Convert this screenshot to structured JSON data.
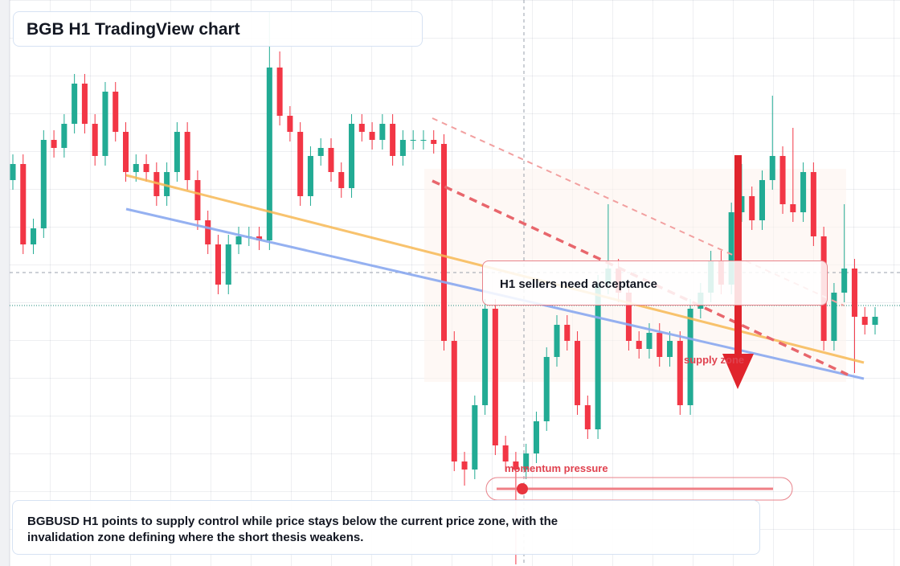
{
  "header": {
    "title": "BGB H1 TradingView chart"
  },
  "annotations": {
    "acceptance": "H1 sellers need acceptance",
    "supply": "supply zone",
    "momentum": "momentum pressure"
  },
  "footer": {
    "text": "BGBUSD H1 points to supply control while price stays below the current price zone, with the invalidation zone defining where the short thesis weakens."
  },
  "chart_data": {
    "type": "candlestick",
    "ylim": [
      0,
      700
    ],
    "up_color": "#22ab94",
    "down_color": "#f23645",
    "candles": [
      [
        480,
        512,
        468,
        500
      ],
      [
        500,
        512,
        388,
        400
      ],
      [
        400,
        432,
        388,
        420
      ],
      [
        420,
        542,
        408,
        530
      ],
      [
        530,
        542,
        508,
        520
      ],
      [
        520,
        562,
        508,
        550
      ],
      [
        550,
        612,
        538,
        600
      ],
      [
        600,
        612,
        538,
        550
      ],
      [
        550,
        562,
        498,
        510
      ],
      [
        510,
        602,
        498,
        590
      ],
      [
        590,
        602,
        528,
        540
      ],
      [
        540,
        552,
        478,
        490
      ],
      [
        490,
        512,
        478,
        500
      ],
      [
        500,
        512,
        478,
        490
      ],
      [
        490,
        502,
        448,
        460
      ],
      [
        460,
        502,
        448,
        490
      ],
      [
        490,
        552,
        478,
        540
      ],
      [
        540,
        552,
        468,
        480
      ],
      [
        480,
        492,
        418,
        430
      ],
      [
        430,
        442,
        388,
        400
      ],
      [
        400,
        412,
        338,
        350
      ],
      [
        350,
        412,
        338,
        400
      ],
      [
        400,
        422,
        388,
        410
      ],
      [
        410,
        422,
        398,
        410
      ],
      [
        410,
        422,
        393,
        405
      ],
      [
        405,
        690,
        393,
        620
      ],
      [
        620,
        640,
        548,
        560
      ],
      [
        560,
        572,
        528,
        540
      ],
      [
        540,
        552,
        448,
        460
      ],
      [
        460,
        522,
        448,
        510
      ],
      [
        510,
        532,
        498,
        520
      ],
      [
        520,
        532,
        478,
        490
      ],
      [
        490,
        502,
        458,
        470
      ],
      [
        470,
        562,
        458,
        550
      ],
      [
        550,
        562,
        528,
        540
      ],
      [
        540,
        552,
        518,
        530
      ],
      [
        530,
        562,
        518,
        550
      ],
      [
        550,
        562,
        498,
        510
      ],
      [
        510,
        542,
        498,
        530
      ],
      [
        530,
        542,
        518,
        530
      ],
      [
        530,
        542,
        518,
        530
      ],
      [
        530,
        542,
        513,
        525
      ],
      [
        525,
        537,
        268,
        280
      ],
      [
        280,
        292,
        118,
        130
      ],
      [
        130,
        142,
        100,
        120
      ],
      [
        120,
        212,
        108,
        200
      ],
      [
        200,
        332,
        188,
        320
      ],
      [
        320,
        332,
        138,
        150
      ],
      [
        150,
        162,
        118,
        130
      ],
      [
        130,
        142,
        2,
        120
      ],
      [
        120,
        152,
        108,
        140
      ],
      [
        140,
        192,
        128,
        180
      ],
      [
        180,
        272,
        168,
        260
      ],
      [
        260,
        312,
        248,
        300
      ],
      [
        300,
        312,
        268,
        280
      ],
      [
        280,
        292,
        188,
        200
      ],
      [
        200,
        212,
        158,
        170
      ],
      [
        170,
        362,
        158,
        350
      ],
      [
        350,
        450,
        338,
        370
      ],
      [
        370,
        382,
        328,
        340
      ],
      [
        340,
        352,
        268,
        280
      ],
      [
        280,
        292,
        258,
        270
      ],
      [
        270,
        302,
        258,
        290
      ],
      [
        290,
        302,
        248,
        260
      ],
      [
        260,
        292,
        248,
        280
      ],
      [
        280,
        292,
        188,
        200
      ],
      [
        200,
        332,
        188,
        320
      ],
      [
        320,
        352,
        308,
        340
      ],
      [
        340,
        392,
        328,
        380
      ],
      [
        380,
        392,
        338,
        350
      ],
      [
        350,
        452,
        338,
        440
      ],
      [
        440,
        500,
        428,
        460
      ],
      [
        460,
        472,
        418,
        430
      ],
      [
        430,
        492,
        418,
        480
      ],
      [
        480,
        585,
        468,
        510
      ],
      [
        510,
        522,
        438,
        450
      ],
      [
        450,
        545,
        428,
        440
      ],
      [
        440,
        502,
        428,
        490
      ],
      [
        490,
        502,
        398,
        410
      ],
      [
        410,
        422,
        268,
        280
      ],
      [
        280,
        352,
        268,
        340
      ],
      [
        340,
        450,
        328,
        370
      ],
      [
        370,
        382,
        240,
        310
      ],
      [
        310,
        322,
        288,
        300
      ],
      [
        300,
        322,
        288,
        310
      ]
    ]
  }
}
